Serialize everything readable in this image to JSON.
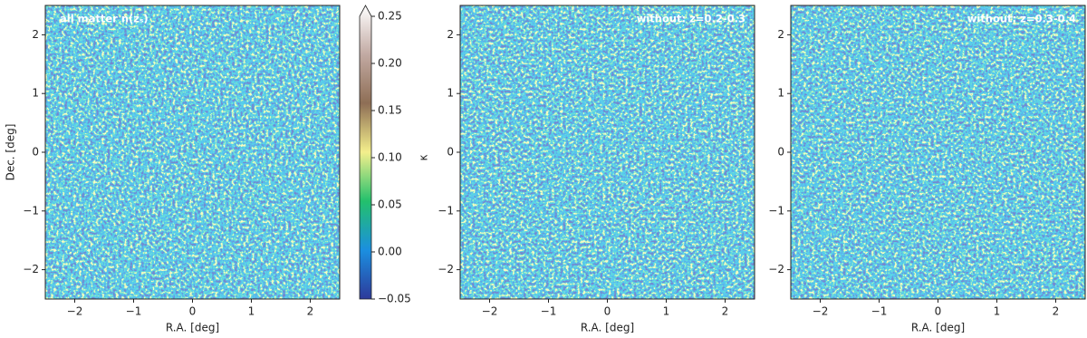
{
  "chart_data": [
    {
      "type": "heatmap",
      "annotation": "all matter n(zₛ)",
      "xlabel": "R.A. [deg]",
      "ylabel": "Dec. [deg]",
      "xlim": [
        -2.5,
        2.5
      ],
      "ylim": [
        -2.5,
        2.5
      ],
      "xticks": [
        {
          "value": -2,
          "label": "−2"
        },
        {
          "value": -1,
          "label": "−1"
        },
        0,
        1,
        2
      ],
      "yticks": [
        {
          "value": -2,
          "label": "−2"
        },
        {
          "value": -1,
          "label": "−1"
        },
        0,
        1,
        2
      ],
      "colorbar": {
        "label": "κ",
        "lim": [
          -0.05,
          0.25
        ],
        "ticks": [
          {
            "value": -0.05,
            "label": "−0.05"
          },
          {
            "value": 0,
            "label": "0.00"
          },
          0.05,
          {
            "value": 0.1,
            "label": "0.10"
          },
          0.15,
          {
            "value": 0.2,
            "label": "0.20"
          },
          0.25
        ],
        "colors": [
          "#2d3a9a",
          "#1b8fe0",
          "#23c06c",
          "#f4ef8c",
          "#8e6e55",
          "#c2aaa3",
          "#ffffff"
        ]
      }
    },
    {
      "type": "heatmap",
      "annotation": "without: z=0.2-0.3",
      "xlabel": "R.A. [deg]",
      "xlim": [
        -2.5,
        2.5
      ],
      "ylim": [
        -2.5,
        2.5
      ],
      "xticks": [
        {
          "value": -2,
          "label": "−2"
        },
        {
          "value": -1,
          "label": "−1"
        },
        0,
        1,
        2
      ],
      "yticks": [
        {
          "value": -2,
          "label": "−2"
        },
        {
          "value": -1,
          "label": "−1"
        },
        0,
        1,
        2
      ]
    },
    {
      "type": "heatmap",
      "annotation": "without: z=0.3-0.4",
      "xlabel": "R.A. [deg]",
      "xlim": [
        -2.5,
        2.5
      ],
      "ylim": [
        -2.5,
        2.5
      ],
      "xticks": [
        {
          "value": -2,
          "label": "−2"
        },
        {
          "value": -1,
          "label": "−1"
        },
        0,
        1,
        2
      ],
      "yticks": [
        {
          "value": -2,
          "label": "−2"
        },
        {
          "value": -1,
          "label": "−1"
        },
        0,
        1,
        2
      ]
    }
  ]
}
